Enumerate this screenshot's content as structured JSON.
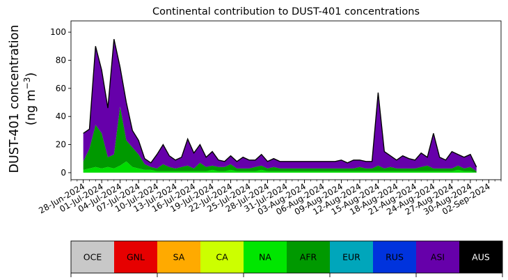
{
  "chart_data": {
    "type": "area",
    "title": "Continental contribution to DUST-401 concentrations",
    "ylabel_line1": "DUST-401 concentration",
    "ylabel_line2_prefix": "(ng m",
    "ylabel_line2_sup": "−3",
    "ylabel_line2_suffix": ")",
    "stacked": true,
    "xlim": [
      "2024-06-26",
      "2024-09-04"
    ],
    "ylim": [
      -5,
      108
    ],
    "yticks": [
      0,
      20,
      40,
      60,
      80,
      100
    ],
    "xtick_labels": [
      "28-Jun-2024",
      "01-Jul-2024",
      "04-Jul-2024",
      "07-Jul-2024",
      "10-Jul-2024",
      "13-Jul-2024",
      "16-Jul-2024",
      "19-Jul-2024",
      "22-Jul-2024",
      "25-Jul-2024",
      "28-Jul-2024",
      "31-Jul-2024",
      "03-Aug-2024",
      "06-Aug-2024",
      "09-Aug-2024",
      "12-Aug-2024",
      "15-Aug-2024",
      "18-Aug-2024",
      "21-Aug-2024",
      "24-Aug-2024",
      "27-Aug-2024",
      "30-Aug-2024",
      "02-Sep-2024"
    ],
    "x": [
      "2024-06-28",
      "2024-06-29",
      "2024-06-30",
      "2024-07-01",
      "2024-07-02",
      "2024-07-03",
      "2024-07-04",
      "2024-07-05",
      "2024-07-06",
      "2024-07-07",
      "2024-07-08",
      "2024-07-09",
      "2024-07-10",
      "2024-07-11",
      "2024-07-12",
      "2024-07-13",
      "2024-07-14",
      "2024-07-15",
      "2024-07-16",
      "2024-07-17",
      "2024-07-18",
      "2024-07-19",
      "2024-07-20",
      "2024-07-21",
      "2024-07-22",
      "2024-07-23",
      "2024-07-24",
      "2024-07-25",
      "2024-07-26",
      "2024-07-27",
      "2024-07-28",
      "2024-07-29",
      "2024-07-30",
      "2024-07-31",
      "2024-08-01",
      "2024-08-02",
      "2024-08-03",
      "2024-08-04",
      "2024-08-05",
      "2024-08-06",
      "2024-08-07",
      "2024-08-08",
      "2024-08-09",
      "2024-08-10",
      "2024-08-11",
      "2024-08-12",
      "2024-08-13",
      "2024-08-14",
      "2024-08-15",
      "2024-08-16",
      "2024-08-17",
      "2024-08-18",
      "2024-08-19",
      "2024-08-20",
      "2024-08-21",
      "2024-08-22",
      "2024-08-23",
      "2024-08-24",
      "2024-08-25",
      "2024-08-26",
      "2024-08-27",
      "2024-08-28",
      "2024-08-29",
      "2024-08-30",
      "2024-08-31"
    ],
    "series": [
      {
        "name": "NA",
        "color": "#00dd00",
        "values": [
          2,
          3,
          4,
          3,
          4,
          3,
          5,
          8,
          4,
          3,
          2,
          2,
          1,
          1,
          1,
          1,
          1,
          1,
          1,
          1,
          1,
          2,
          1,
          1,
          2,
          1,
          1,
          1,
          1,
          2,
          1,
          1,
          1,
          1,
          1,
          1,
          1,
          1,
          1,
          1,
          1,
          1,
          1,
          1,
          1,
          1,
          1,
          1,
          1,
          1,
          1,
          1,
          1,
          1,
          1,
          1,
          1,
          1,
          1,
          1,
          1,
          2,
          1,
          1,
          0
        ]
      },
      {
        "name": "AFR",
        "color": "#009900",
        "values": [
          6,
          14,
          30,
          25,
          7,
          10,
          42,
          15,
          14,
          10,
          4,
          2,
          2,
          5,
          3,
          2,
          3,
          4,
          2,
          6,
          3,
          3,
          3,
          3,
          4,
          2,
          2,
          2,
          3,
          3,
          2,
          3,
          2,
          2,
          2,
          2,
          2,
          2,
          2,
          2,
          2,
          2,
          2,
          2,
          2,
          3,
          2,
          2,
          4,
          2,
          3,
          2,
          2,
          2,
          2,
          3,
          4,
          2,
          2,
          2,
          2,
          3,
          2,
          3,
          1
        ]
      },
      {
        "name": "ASI",
        "color": "#6600aa",
        "values": [
          20,
          14,
          56,
          45,
          35,
          82,
          28,
          27,
          12,
          10,
          4,
          3,
          10,
          14,
          8,
          6,
          7,
          19,
          11,
          13,
          7,
          10,
          5,
          4,
          6,
          5,
          8,
          6,
          5,
          8,
          5,
          6,
          5,
          5,
          5,
          5,
          5,
          5,
          5,
          5,
          5,
          5,
          6,
          4,
          6,
          5,
          5,
          5,
          52,
          12,
          8,
          6,
          9,
          7,
          6,
          10,
          6,
          25,
          8,
          6,
          12,
          8,
          8,
          9,
          3
        ]
      }
    ],
    "total_line_color": "#000000"
  },
  "legend_bar": {
    "items": [
      {
        "label": "OCE",
        "color": "#c8c8c8",
        "text_color": "#000000"
      },
      {
        "label": "GNL",
        "color": "#e60000",
        "text_color": "#000000"
      },
      {
        "label": "SA",
        "color": "#ffaa00",
        "text_color": "#000000"
      },
      {
        "label": "CA",
        "color": "#ccff00",
        "text_color": "#000000"
      },
      {
        "label": "NA",
        "color": "#00e600",
        "text_color": "#000000"
      },
      {
        "label": "AFR",
        "color": "#009900",
        "text_color": "#000000"
      },
      {
        "label": "EUR",
        "color": "#00a6bb",
        "text_color": "#000000"
      },
      {
        "label": "RUS",
        "color": "#0033dd",
        "text_color": "#000000"
      },
      {
        "label": "ASI",
        "color": "#6600aa",
        "text_color": "#000000"
      },
      {
        "label": "AUS",
        "color": "#000000",
        "text_color": "#ffffff"
      }
    ]
  }
}
